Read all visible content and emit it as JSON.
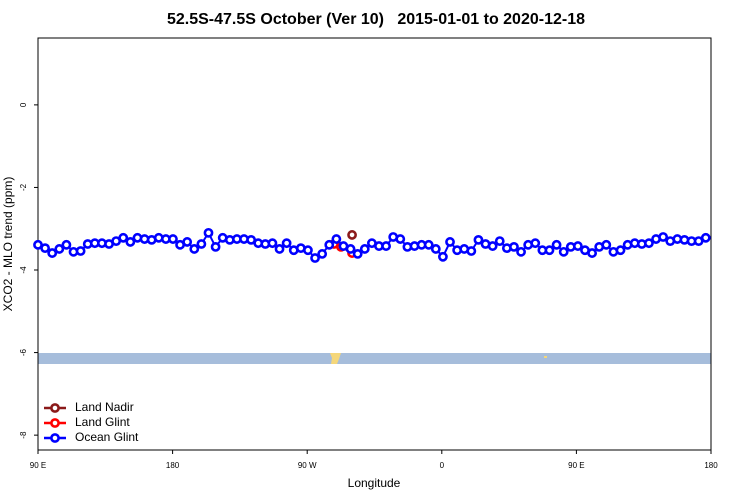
{
  "chart_data": {
    "type": "line",
    "title": "52.5S-47.5S October (Ver 10)   2015-01-01 to 2020-12-18",
    "x_label": "Longitude",
    "y_label": "XCO2 - MLO trend (ppm)",
    "xlim": [
      90,
      540
    ],
    "ylim": [
      -8.36,
      1.62
    ],
    "xticks": [
      {
        "value": 90,
        "label": "90 E"
      },
      180,
      {
        "value": 270,
        "label": "90 W"
      },
      {
        "value": 360,
        "label": "0"
      },
      {
        "value": 450,
        "label": "90 E"
      },
      {
        "value": 540,
        "label": "180"
      }
    ],
    "yticks": [
      0,
      -2,
      -4,
      -6,
      -8
    ],
    "legend_position": "bottom-left",
    "series": [
      {
        "name": "Land Nadir",
        "color": "#8b1a1a",
        "x": [
          300
        ],
        "values": [
          -3.15
        ]
      },
      {
        "name": "Land Glint",
        "color": "#ff0000",
        "x": [
          287.9,
          292.6,
          300
        ],
        "values": [
          -3.37,
          -3.44,
          -3.59
        ]
      },
      {
        "name": "Ocean Glint",
        "color": "#0000ff",
        "x": [
          90,
          94.75,
          99.5,
          104.25,
          109,
          113.75,
          118.5,
          123.25,
          128,
          132.75,
          137.5,
          142.25,
          147,
          151.75,
          156.5,
          161.25,
          166,
          170.75,
          175.5,
          180.25,
          185,
          189.75,
          194.5,
          199.25,
          204,
          208.75,
          213.5,
          218.25,
          223,
          227.75,
          232.5,
          237.25,
          242,
          246.75,
          251.5,
          256.25,
          261,
          265.75,
          270.5,
          275.25,
          280,
          284.75,
          289.5,
          294.25,
          299,
          303.75,
          308.5,
          313.25,
          318,
          322.75,
          327.5,
          332.25,
          337,
          341.75,
          346.5,
          351.25,
          356,
          360.75,
          365.5,
          370.25,
          375,
          379.75,
          384.5,
          389.25,
          394,
          398.75,
          403.5,
          408.25,
          413,
          417.75,
          422.5,
          427.25,
          432,
          436.75,
          441.5,
          446.25,
          451,
          455.75,
          460.5,
          465.25,
          470,
          474.75,
          479.5,
          484.25,
          489,
          493.75,
          498.5,
          503.25,
          508,
          512.75,
          517.5,
          522.25,
          527,
          531.75,
          536.5
        ],
        "values": [
          -3.39,
          -3.47,
          -3.59,
          -3.49,
          -3.39,
          -3.56,
          -3.54,
          -3.37,
          -3.35,
          -3.35,
          -3.37,
          -3.3,
          -3.22,
          -3.32,
          -3.22,
          -3.25,
          -3.27,
          -3.22,
          -3.25,
          -3.25,
          -3.39,
          -3.32,
          -3.49,
          -3.37,
          -3.1,
          -3.44,
          -3.22,
          -3.27,
          -3.25,
          -3.25,
          -3.27,
          -3.35,
          -3.37,
          -3.35,
          -3.49,
          -3.35,
          -3.52,
          -3.47,
          -3.52,
          -3.71,
          -3.61,
          -3.39,
          -3.25,
          -3.42,
          -3.49,
          -3.61,
          -3.49,
          -3.35,
          -3.42,
          -3.42,
          -3.2,
          -3.25,
          -3.44,
          -3.42,
          -3.39,
          -3.39,
          -3.49,
          -3.68,
          -3.32,
          -3.52,
          -3.49,
          -3.54,
          -3.27,
          -3.37,
          -3.42,
          -3.3,
          -3.47,
          -3.44,
          -3.56,
          -3.39,
          -3.35,
          -3.52,
          -3.52,
          -3.39,
          -3.56,
          -3.44,
          -3.42,
          -3.52,
          -3.59,
          -3.44,
          -3.39,
          -3.56,
          -3.52,
          -3.39,
          -3.35,
          -3.37,
          -3.35,
          -3.25,
          -3.2,
          -3.3,
          -3.25,
          -3.27,
          -3.3,
          -3.3,
          -3.22
        ]
      }
    ]
  }
}
